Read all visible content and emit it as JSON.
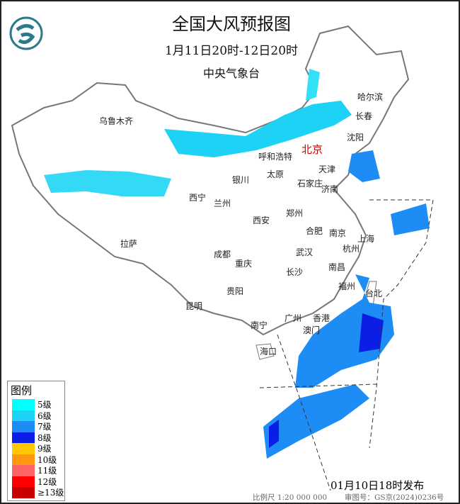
{
  "header": {
    "title": "全国大风预报图",
    "period": "1月11日20时-12日20时",
    "agency": "中央气象台"
  },
  "logo": "中央气象台",
  "capital": "北京",
  "cities": [
    "哈尔滨",
    "长春",
    "沈阳",
    "乌鲁木齐",
    "呼和浩特",
    "天津",
    "银川",
    "太原",
    "石家庄",
    "济南",
    "西宁",
    "兰州",
    "郑州",
    "西安",
    "合肥",
    "南京",
    "上海",
    "杭州",
    "拉萨",
    "成都",
    "武汉",
    "重庆",
    "南昌",
    "长沙",
    "福州",
    "台北",
    "贵阳",
    "昆明",
    "广州",
    "香港",
    "澳门",
    "南宁",
    "海口"
  ],
  "legend": {
    "title": "图例",
    "items": [
      {
        "label": "5级",
        "color": "#00ffff"
      },
      {
        "label": "6级",
        "color": "#1ed2f5"
      },
      {
        "label": "7级",
        "color": "#1e8cf5"
      },
      {
        "label": "8级",
        "color": "#0a1ee6"
      },
      {
        "label": "9级",
        "color": "#ffc800"
      },
      {
        "label": "10级",
        "color": "#ff9614"
      },
      {
        "label": "11级",
        "color": "#ff6464"
      },
      {
        "label": "12级",
        "color": "#ff0000"
      },
      {
        "label": "≥13级",
        "color": "#c80000"
      }
    ]
  },
  "footer": {
    "issued": "01月10日18时发布",
    "scale": "比例尺 1:20 000 000",
    "review": "审图号：GS京(2024)0236号"
  }
}
